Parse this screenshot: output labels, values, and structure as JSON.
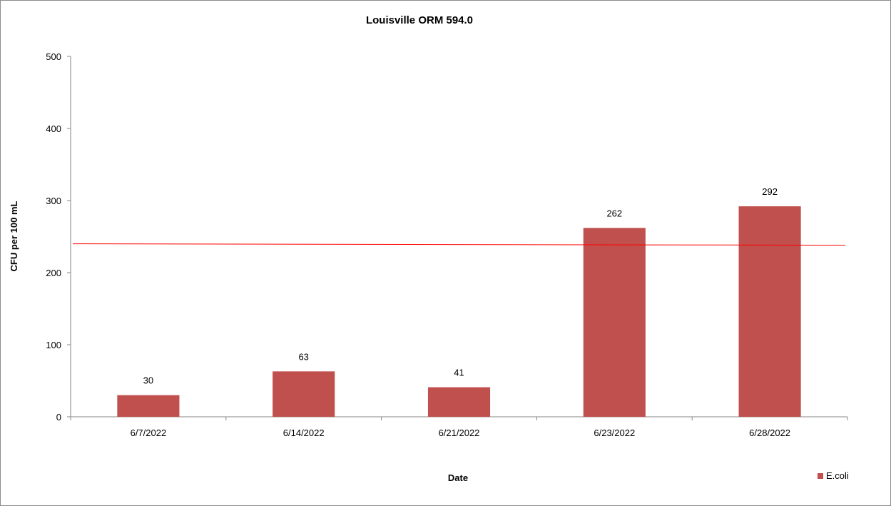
{
  "chart_data": {
    "type": "bar",
    "title": "Louisville ORM 594.0",
    "xlabel": "Date",
    "ylabel": "CFU per 100 mL",
    "categories": [
      "6/7/2022",
      "6/14/2022",
      "6/21/2022",
      "6/23/2022",
      "6/28/2022"
    ],
    "series": [
      {
        "name": "E.coli",
        "values": [
          30,
          63,
          41,
          262,
          292
        ],
        "color": "#c0504d"
      }
    ],
    "data_labels": [
      "30",
      "63",
      "41",
      "262",
      "292"
    ],
    "yticks": [
      "0",
      "100",
      "200",
      "300",
      "400",
      "500"
    ],
    "ylim": [
      0,
      500
    ],
    "reference_line": {
      "start": 240,
      "end": 238,
      "color": "#ff0000"
    },
    "grid": false,
    "legend_position": "bottom-right"
  }
}
